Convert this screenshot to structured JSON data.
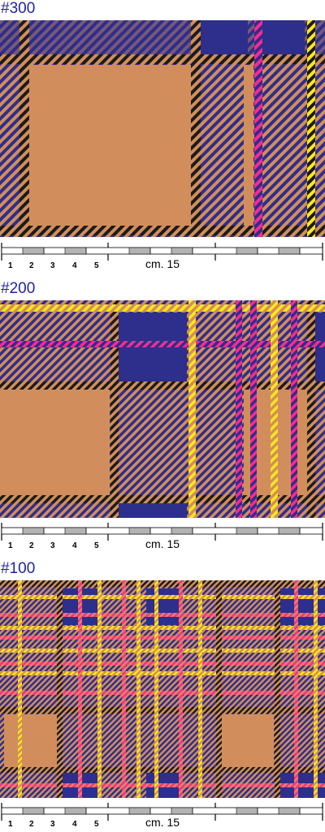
{
  "colors": {
    "tan": "#d18e5c",
    "navy": "#2e2e8c",
    "black": "#1b1b1b",
    "pink": "#ff2a8f",
    "yellow": "#ffe81a",
    "label": "#2323a0",
    "scale_gray": "#b3b3b3"
  },
  "scale": {
    "numbers": [
      "1",
      "2",
      "3",
      "4",
      "5"
    ],
    "unit_label": "cm. 15"
  },
  "swatches": [
    {
      "label": "#300"
    },
    {
      "label": "#200"
    },
    {
      "label": "#100"
    }
  ]
}
